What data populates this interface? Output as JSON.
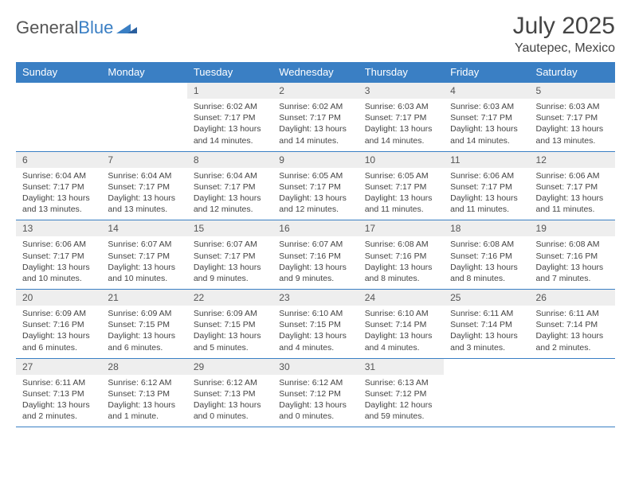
{
  "brand": {
    "general": "General",
    "blue": "Blue"
  },
  "title": "July 2025",
  "subtitle": "Yautepec, Mexico",
  "colors": {
    "header_bg": "#3a7fc4",
    "header_text": "#ffffff",
    "daynum_bg": "#eeeeee",
    "border": "#3a7fc4",
    "body_text": "#444444"
  },
  "day_headers": [
    "Sunday",
    "Monday",
    "Tuesday",
    "Wednesday",
    "Thursday",
    "Friday",
    "Saturday"
  ],
  "weeks": [
    [
      {
        "n": "",
        "sr": "",
        "ss": "",
        "dl": ""
      },
      {
        "n": "",
        "sr": "",
        "ss": "",
        "dl": ""
      },
      {
        "n": "1",
        "sr": "Sunrise: 6:02 AM",
        "ss": "Sunset: 7:17 PM",
        "dl": "Daylight: 13 hours and 14 minutes."
      },
      {
        "n": "2",
        "sr": "Sunrise: 6:02 AM",
        "ss": "Sunset: 7:17 PM",
        "dl": "Daylight: 13 hours and 14 minutes."
      },
      {
        "n": "3",
        "sr": "Sunrise: 6:03 AM",
        "ss": "Sunset: 7:17 PM",
        "dl": "Daylight: 13 hours and 14 minutes."
      },
      {
        "n": "4",
        "sr": "Sunrise: 6:03 AM",
        "ss": "Sunset: 7:17 PM",
        "dl": "Daylight: 13 hours and 14 minutes."
      },
      {
        "n": "5",
        "sr": "Sunrise: 6:03 AM",
        "ss": "Sunset: 7:17 PM",
        "dl": "Daylight: 13 hours and 13 minutes."
      }
    ],
    [
      {
        "n": "6",
        "sr": "Sunrise: 6:04 AM",
        "ss": "Sunset: 7:17 PM",
        "dl": "Daylight: 13 hours and 13 minutes."
      },
      {
        "n": "7",
        "sr": "Sunrise: 6:04 AM",
        "ss": "Sunset: 7:17 PM",
        "dl": "Daylight: 13 hours and 13 minutes."
      },
      {
        "n": "8",
        "sr": "Sunrise: 6:04 AM",
        "ss": "Sunset: 7:17 PM",
        "dl": "Daylight: 13 hours and 12 minutes."
      },
      {
        "n": "9",
        "sr": "Sunrise: 6:05 AM",
        "ss": "Sunset: 7:17 PM",
        "dl": "Daylight: 13 hours and 12 minutes."
      },
      {
        "n": "10",
        "sr": "Sunrise: 6:05 AM",
        "ss": "Sunset: 7:17 PM",
        "dl": "Daylight: 13 hours and 11 minutes."
      },
      {
        "n": "11",
        "sr": "Sunrise: 6:06 AM",
        "ss": "Sunset: 7:17 PM",
        "dl": "Daylight: 13 hours and 11 minutes."
      },
      {
        "n": "12",
        "sr": "Sunrise: 6:06 AM",
        "ss": "Sunset: 7:17 PM",
        "dl": "Daylight: 13 hours and 11 minutes."
      }
    ],
    [
      {
        "n": "13",
        "sr": "Sunrise: 6:06 AM",
        "ss": "Sunset: 7:17 PM",
        "dl": "Daylight: 13 hours and 10 minutes."
      },
      {
        "n": "14",
        "sr": "Sunrise: 6:07 AM",
        "ss": "Sunset: 7:17 PM",
        "dl": "Daylight: 13 hours and 10 minutes."
      },
      {
        "n": "15",
        "sr": "Sunrise: 6:07 AM",
        "ss": "Sunset: 7:17 PM",
        "dl": "Daylight: 13 hours and 9 minutes."
      },
      {
        "n": "16",
        "sr": "Sunrise: 6:07 AM",
        "ss": "Sunset: 7:16 PM",
        "dl": "Daylight: 13 hours and 9 minutes."
      },
      {
        "n": "17",
        "sr": "Sunrise: 6:08 AM",
        "ss": "Sunset: 7:16 PM",
        "dl": "Daylight: 13 hours and 8 minutes."
      },
      {
        "n": "18",
        "sr": "Sunrise: 6:08 AM",
        "ss": "Sunset: 7:16 PM",
        "dl": "Daylight: 13 hours and 8 minutes."
      },
      {
        "n": "19",
        "sr": "Sunrise: 6:08 AM",
        "ss": "Sunset: 7:16 PM",
        "dl": "Daylight: 13 hours and 7 minutes."
      }
    ],
    [
      {
        "n": "20",
        "sr": "Sunrise: 6:09 AM",
        "ss": "Sunset: 7:16 PM",
        "dl": "Daylight: 13 hours and 6 minutes."
      },
      {
        "n": "21",
        "sr": "Sunrise: 6:09 AM",
        "ss": "Sunset: 7:15 PM",
        "dl": "Daylight: 13 hours and 6 minutes."
      },
      {
        "n": "22",
        "sr": "Sunrise: 6:09 AM",
        "ss": "Sunset: 7:15 PM",
        "dl": "Daylight: 13 hours and 5 minutes."
      },
      {
        "n": "23",
        "sr": "Sunrise: 6:10 AM",
        "ss": "Sunset: 7:15 PM",
        "dl": "Daylight: 13 hours and 4 minutes."
      },
      {
        "n": "24",
        "sr": "Sunrise: 6:10 AM",
        "ss": "Sunset: 7:14 PM",
        "dl": "Daylight: 13 hours and 4 minutes."
      },
      {
        "n": "25",
        "sr": "Sunrise: 6:11 AM",
        "ss": "Sunset: 7:14 PM",
        "dl": "Daylight: 13 hours and 3 minutes."
      },
      {
        "n": "26",
        "sr": "Sunrise: 6:11 AM",
        "ss": "Sunset: 7:14 PM",
        "dl": "Daylight: 13 hours and 2 minutes."
      }
    ],
    [
      {
        "n": "27",
        "sr": "Sunrise: 6:11 AM",
        "ss": "Sunset: 7:13 PM",
        "dl": "Daylight: 13 hours and 2 minutes."
      },
      {
        "n": "28",
        "sr": "Sunrise: 6:12 AM",
        "ss": "Sunset: 7:13 PM",
        "dl": "Daylight: 13 hours and 1 minute."
      },
      {
        "n": "29",
        "sr": "Sunrise: 6:12 AM",
        "ss": "Sunset: 7:13 PM",
        "dl": "Daylight: 13 hours and 0 minutes."
      },
      {
        "n": "30",
        "sr": "Sunrise: 6:12 AM",
        "ss": "Sunset: 7:12 PM",
        "dl": "Daylight: 13 hours and 0 minutes."
      },
      {
        "n": "31",
        "sr": "Sunrise: 6:13 AM",
        "ss": "Sunset: 7:12 PM",
        "dl": "Daylight: 12 hours and 59 minutes."
      },
      {
        "n": "",
        "sr": "",
        "ss": "",
        "dl": ""
      },
      {
        "n": "",
        "sr": "",
        "ss": "",
        "dl": ""
      }
    ]
  ]
}
